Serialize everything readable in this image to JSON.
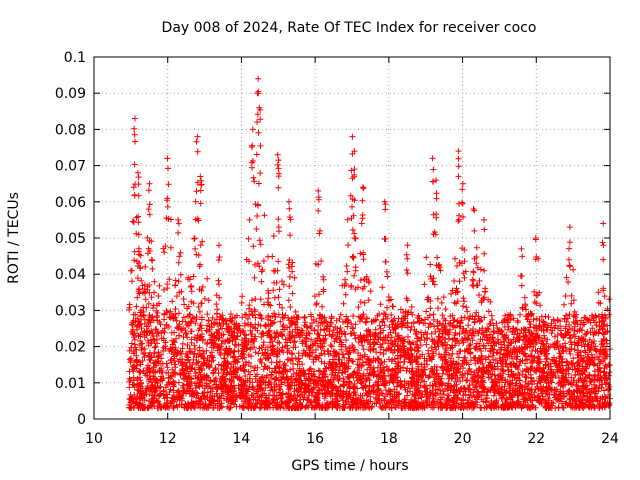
{
  "chart_data": {
    "type": "scatter",
    "title": "Day 008 of 2024, Rate Of TEC Index for receiver coco",
    "xlabel": "GPS time / hours",
    "ylabel": "ROTI / TECUs",
    "xlim": [
      10,
      24
    ],
    "ylim": [
      0,
      0.1
    ],
    "x_ticks": [
      10,
      12,
      14,
      16,
      18,
      20,
      22,
      24
    ],
    "y_ticks": [
      0,
      0.01,
      0.02,
      0.03,
      0.04,
      0.05,
      0.06,
      0.07,
      0.08,
      0.09,
      0.1
    ],
    "x_tick_labels": [
      "10",
      "12",
      "14",
      "16",
      "18",
      "20",
      "22",
      "24"
    ],
    "y_tick_labels": [
      "0",
      "0.01",
      "0.02",
      "0.03",
      "0.04",
      "0.05",
      "0.06",
      "0.07",
      "0.08",
      "0.09",
      "0.1"
    ],
    "grid": true,
    "marker": "+",
    "color": "#ff0000",
    "peaks": [
      {
        "x": 11.1,
        "y": 0.083
      },
      {
        "x": 11.2,
        "y": 0.068
      },
      {
        "x": 11.5,
        "y": 0.065
      },
      {
        "x": 12.0,
        "y": 0.072
      },
      {
        "x": 12.3,
        "y": 0.055
      },
      {
        "x": 12.8,
        "y": 0.078
      },
      {
        "x": 12.9,
        "y": 0.067
      },
      {
        "x": 13.4,
        "y": 0.048
      },
      {
        "x": 14.3,
        "y": 0.08
      },
      {
        "x": 14.45,
        "y": 0.094
      },
      {
        "x": 14.5,
        "y": 0.086
      },
      {
        "x": 15.0,
        "y": 0.073
      },
      {
        "x": 15.3,
        "y": 0.06
      },
      {
        "x": 16.1,
        "y": 0.063
      },
      {
        "x": 17.0,
        "y": 0.078
      },
      {
        "x": 17.05,
        "y": 0.074
      },
      {
        "x": 17.3,
        "y": 0.064
      },
      {
        "x": 17.9,
        "y": 0.06
      },
      {
        "x": 18.5,
        "y": 0.048
      },
      {
        "x": 19.2,
        "y": 0.072
      },
      {
        "x": 19.3,
        "y": 0.066
      },
      {
        "x": 19.9,
        "y": 0.074
      },
      {
        "x": 20.0,
        "y": 0.065
      },
      {
        "x": 20.3,
        "y": 0.058
      },
      {
        "x": 20.6,
        "y": 0.055
      },
      {
        "x": 21.6,
        "y": 0.047
      },
      {
        "x": 22.0,
        "y": 0.05
      },
      {
        "x": 22.9,
        "y": 0.053
      },
      {
        "x": 23.8,
        "y": 0.054
      }
    ]
  }
}
